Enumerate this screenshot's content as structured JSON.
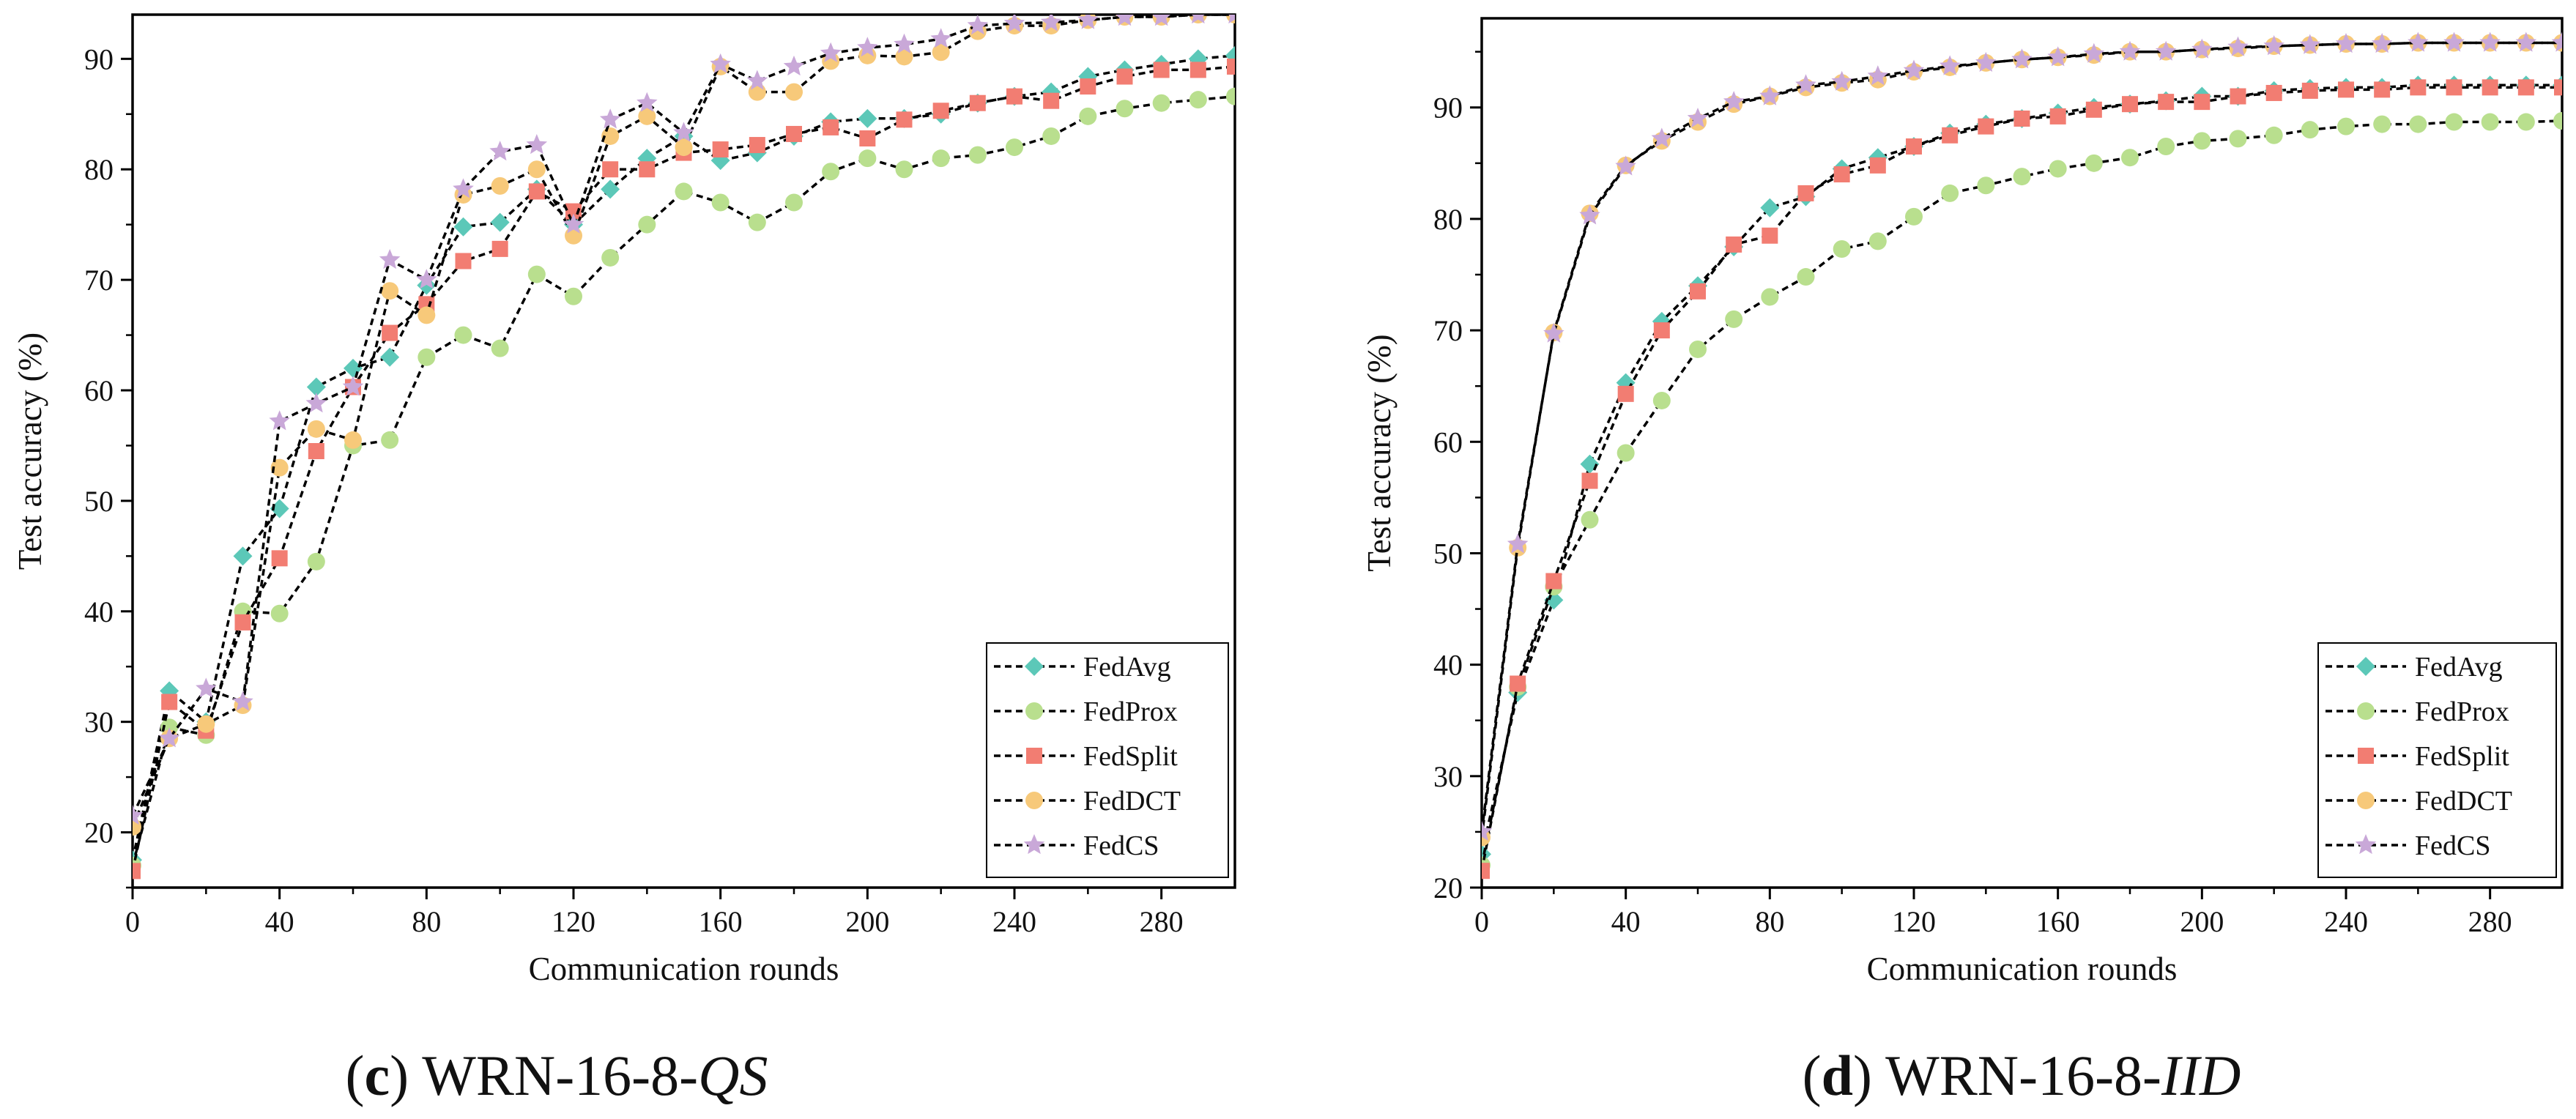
{
  "chart_data": [
    {
      "type": "line",
      "caption": {
        "label": "c",
        "prefix": "WRN-16-8-",
        "suffix": "QS"
      },
      "xlabel": "Communication rounds",
      "ylabel": "Test accuracy (%)",
      "xlim": [
        0,
        300
      ],
      "ylim": [
        15,
        94
      ],
      "xticks": [
        0,
        40,
        80,
        120,
        160,
        200,
        240,
        280
      ],
      "yticks": [
        20,
        30,
        40,
        50,
        60,
        70,
        80,
        90
      ],
      "legend_position": "bottom-right",
      "x": [
        0,
        10,
        20,
        30,
        40,
        50,
        60,
        70,
        80,
        90,
        100,
        110,
        120,
        130,
        140,
        150,
        160,
        170,
        180,
        190,
        200,
        210,
        220,
        230,
        240,
        250,
        260,
        270,
        280,
        290,
        300
      ],
      "series": [
        {
          "name": "FedAvg",
          "color": "#5cc8b8",
          "marker": "diamond",
          "values": [
            17.5,
            32.8,
            30.0,
            45.0,
            49.3,
            60.3,
            62.0,
            63.0,
            69.5,
            74.8,
            75.2,
            78.2,
            75.0,
            78.2,
            81.0,
            83.0,
            80.8,
            81.5,
            83.0,
            84.3,
            84.6,
            84.6,
            85.0,
            86.0,
            86.6,
            87.0,
            88.4,
            89.0,
            89.5,
            90.0,
            90.3
          ]
        },
        {
          "name": "FedProx",
          "color": "#b9df8e",
          "marker": "circle",
          "values": [
            17.0,
            29.5,
            28.8,
            40.0,
            39.8,
            44.5,
            55.0,
            55.5,
            63.0,
            65.0,
            63.8,
            70.5,
            68.5,
            72.0,
            75.0,
            78.0,
            77.0,
            75.2,
            77.0,
            79.8,
            81.0,
            80.0,
            81.0,
            81.3,
            82.0,
            83.0,
            84.8,
            85.5,
            86.0,
            86.3,
            86.6
          ]
        },
        {
          "name": "FedSplit",
          "color": "#f27d72",
          "marker": "square",
          "values": [
            16.5,
            31.8,
            29.2,
            39.0,
            44.8,
            54.5,
            60.3,
            65.2,
            67.8,
            71.7,
            72.8,
            78.0,
            76.2,
            80.0,
            80.0,
            81.5,
            81.8,
            82.2,
            83.2,
            83.8,
            82.8,
            84.5,
            85.3,
            86.0,
            86.6,
            86.2,
            87.5,
            88.4,
            89.0,
            89.0,
            89.3
          ]
        },
        {
          "name": "FedDCT",
          "color": "#f7c97a",
          "marker": "circle",
          "values": [
            20.5,
            28.5,
            29.8,
            31.5,
            53.0,
            56.5,
            55.5,
            69.0,
            66.8,
            77.7,
            78.5,
            80.0,
            74.0,
            83.0,
            84.8,
            82.0,
            89.3,
            87.0,
            87.0,
            89.8,
            90.3,
            90.2,
            90.6,
            92.5,
            93.0,
            93.0,
            93.5,
            93.8,
            93.8,
            94.0,
            94.0
          ]
        },
        {
          "name": "FedCS",
          "color": "#c9a8d8",
          "marker": "star",
          "values": [
            21.5,
            28.5,
            33.0,
            31.8,
            57.2,
            58.8,
            60.3,
            71.8,
            70.0,
            78.2,
            81.6,
            82.2,
            75.0,
            84.5,
            86.0,
            83.3,
            89.5,
            88.0,
            89.3,
            90.5,
            91.0,
            91.3,
            91.8,
            93.0,
            93.2,
            93.3,
            93.5,
            93.8,
            93.8,
            94.0,
            94.0
          ]
        }
      ]
    },
    {
      "type": "line",
      "caption": {
        "label": "d",
        "prefix": "WRN-16-8-",
        "suffix": "IID"
      },
      "xlabel": "Communication rounds",
      "ylabel": "Test accuracy (%)",
      "xlim": [
        0,
        300
      ],
      "ylim": [
        20,
        98
      ],
      "xticks": [
        0,
        40,
        80,
        120,
        160,
        200,
        240,
        280
      ],
      "yticks": [
        20,
        30,
        40,
        50,
        60,
        70,
        80,
        90
      ],
      "legend_position": "bottom-right",
      "x": [
        0,
        10,
        20,
        30,
        40,
        50,
        60,
        70,
        80,
        90,
        100,
        110,
        120,
        130,
        140,
        150,
        160,
        170,
        180,
        190,
        200,
        210,
        220,
        230,
        240,
        250,
        260,
        270,
        280,
        290,
        300
      ],
      "series": [
        {
          "name": "FedAvg",
          "color": "#5cc8b8",
          "marker": "diamond",
          "values": [
            23.0,
            37.5,
            45.8,
            58.0,
            65.3,
            70.8,
            74.0,
            77.5,
            81.0,
            82.0,
            84.5,
            85.5,
            86.5,
            87.7,
            88.5,
            89.0,
            89.5,
            90.0,
            90.3,
            90.6,
            91.0,
            91.0,
            91.5,
            91.7,
            91.8,
            91.8,
            92.0,
            92.0,
            92.0,
            92.0,
            92.0
          ]
        },
        {
          "name": "FedProx",
          "color": "#b9df8e",
          "marker": "circle",
          "values": [
            22.0,
            38.0,
            47.0,
            53.0,
            59.0,
            63.7,
            68.3,
            71.0,
            73.0,
            74.8,
            77.3,
            78.0,
            80.2,
            82.3,
            83.0,
            83.8,
            84.5,
            85.0,
            85.5,
            86.5,
            87.0,
            87.2,
            87.5,
            88.0,
            88.3,
            88.5,
            88.5,
            88.7,
            88.7,
            88.7,
            88.8
          ]
        },
        {
          "name": "FedSplit",
          "color": "#f27d72",
          "marker": "square",
          "values": [
            21.5,
            38.3,
            47.5,
            56.5,
            64.3,
            70.0,
            73.5,
            77.7,
            78.5,
            82.3,
            84.0,
            84.8,
            86.5,
            87.5,
            88.3,
            89.0,
            89.2,
            89.8,
            90.3,
            90.5,
            90.5,
            91.0,
            91.3,
            91.5,
            91.6,
            91.6,
            91.8,
            91.8,
            91.8,
            91.8,
            91.8
          ]
        },
        {
          "name": "FedDCT",
          "color": "#f7c97a",
          "marker": "circle",
          "values": [
            24.5,
            50.5,
            69.8,
            80.5,
            84.8,
            87.0,
            88.7,
            90.3,
            91.0,
            91.8,
            92.2,
            92.5,
            93.2,
            93.6,
            94.0,
            94.3,
            94.5,
            94.7,
            95.0,
            95.0,
            95.2,
            95.3,
            95.5,
            95.6,
            95.7,
            95.7,
            95.8,
            95.8,
            95.8,
            95.8,
            95.8
          ]
        },
        {
          "name": "FedCS",
          "color": "#c9a8d8",
          "marker": "star",
          "values": [
            25.0,
            50.8,
            69.7,
            80.3,
            84.7,
            87.2,
            89.0,
            90.5,
            91.0,
            92.0,
            92.3,
            92.8,
            93.3,
            93.7,
            94.0,
            94.3,
            94.5,
            94.8,
            95.0,
            95.0,
            95.2,
            95.4,
            95.5,
            95.6,
            95.7,
            95.7,
            95.8,
            95.8,
            95.8,
            95.8,
            95.8
          ]
        }
      ]
    }
  ]
}
